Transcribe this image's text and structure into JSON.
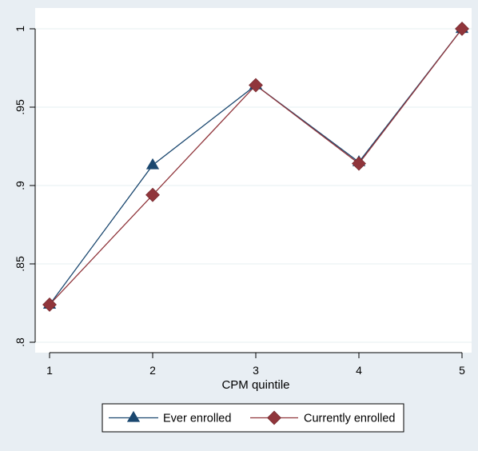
{
  "chart_data": {
    "type": "line",
    "title": "",
    "xlabel": "CPM quintile",
    "ylabel": "",
    "x": [
      1,
      2,
      3,
      4,
      5
    ],
    "xlim": [
      1,
      5
    ],
    "ylim": [
      0.8,
      1.0
    ],
    "xticks": [
      {
        "value": 1,
        "label": "1"
      },
      {
        "value": 2,
        "label": "2"
      },
      {
        "value": 3,
        "label": "3"
      },
      {
        "value": 4,
        "label": "4"
      },
      {
        "value": 5,
        "label": "5"
      }
    ],
    "yticks": [
      {
        "value": 0.8,
        "label": ".8"
      },
      {
        "value": 0.85,
        "label": ".85"
      },
      {
        "value": 0.9,
        "label": ".9"
      },
      {
        "value": 0.95,
        "label": ".95"
      },
      {
        "value": 1.0,
        "label": "1"
      }
    ],
    "grid": "horizontal",
    "legend_position": "bottom",
    "series": [
      {
        "name": "Ever enrolled",
        "values": [
          0.824,
          0.913,
          0.964,
          0.915,
          1.0
        ],
        "color": "#1a476f",
        "marker": "triangle"
      },
      {
        "name": "Currently enrolled",
        "values": [
          0.824,
          0.894,
          0.964,
          0.914,
          1.0
        ],
        "color": "#90353b",
        "marker": "diamond"
      }
    ]
  },
  "colors": {
    "page_background": "#e8eef3",
    "plot_background": "#ffffff",
    "grid": "#eaf2f3",
    "axis": "#000000"
  }
}
